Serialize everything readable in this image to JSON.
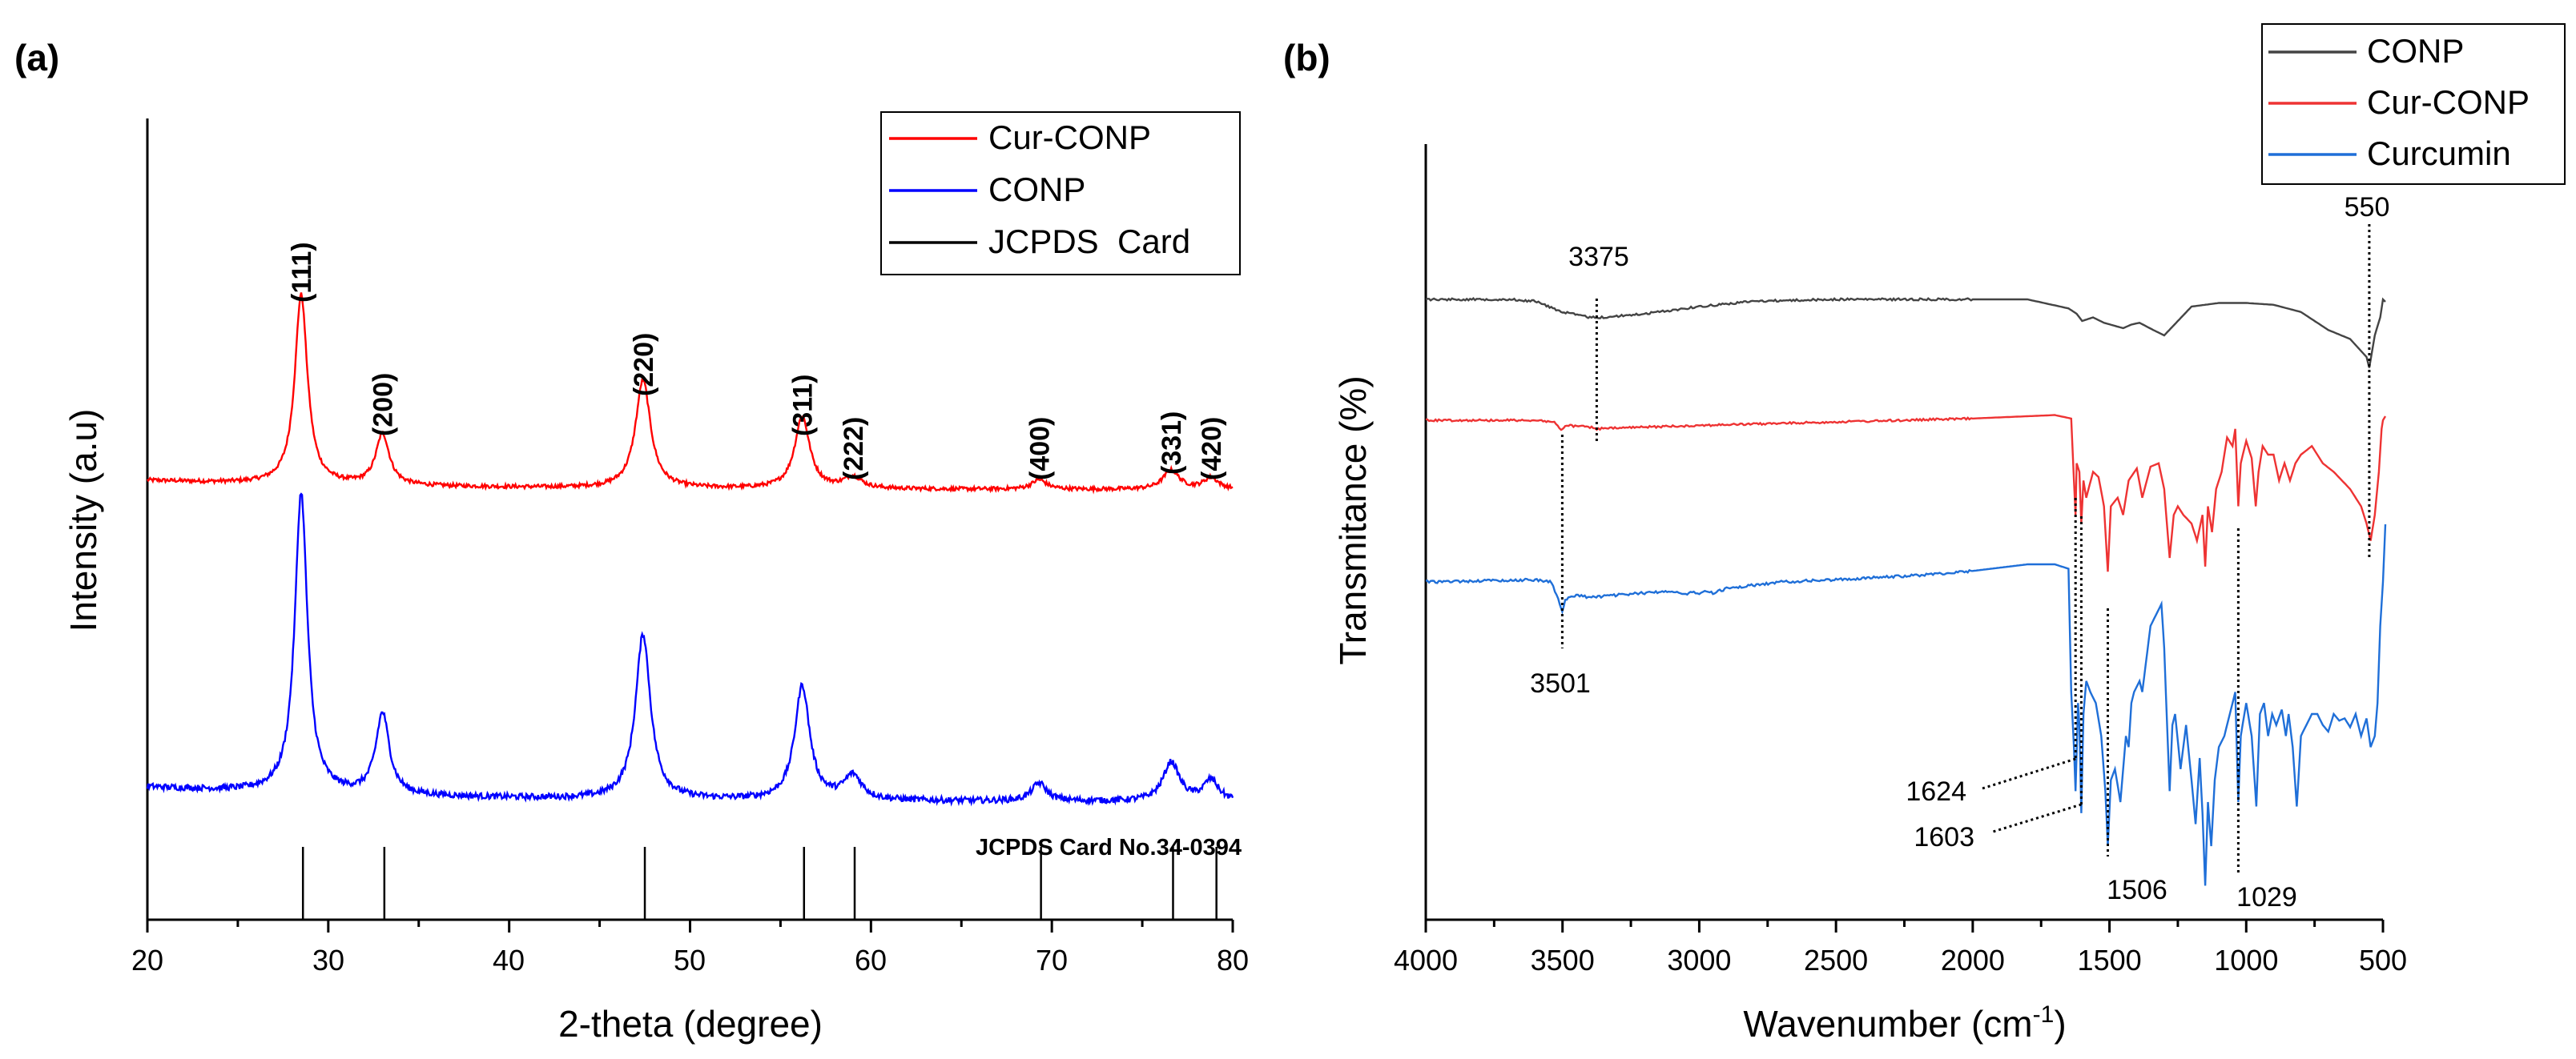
{
  "chart_data": [
    {
      "panel_label": "(a)",
      "type": "line",
      "xlabel": "2-theta (degree)",
      "ylabel": "Intensity (a.u)",
      "xlim": [
        20,
        80
      ],
      "xticks": [
        "20",
        "30",
        "40",
        "50",
        "60",
        "70",
        "80"
      ],
      "legend": [
        "Cur-CONP",
        "CONP",
        "JCPDS  Card"
      ],
      "legend_position": "top-right",
      "colors": {
        "cur": "#ff0000",
        "conp": "#0000ff",
        "card": "#000000"
      },
      "series": [
        {
          "name": "Cur-CONP",
          "color": "#ff0000",
          "baseline": 0.05,
          "peaks": [
            [
              28.5,
              1.0,
              0.42
            ],
            [
              33.0,
              0.27,
              0.45
            ],
            [
              47.4,
              0.57,
              0.5
            ],
            [
              56.2,
              0.38,
              0.5
            ],
            [
              59.0,
              0.06,
              0.6
            ],
            [
              69.3,
              0.05,
              0.5
            ],
            [
              76.6,
              0.1,
              0.55
            ],
            [
              78.8,
              0.06,
              0.5
            ]
          ]
        },
        {
          "name": "CONP",
          "color": "#0000ff",
          "baseline": 0.05,
          "peaks": [
            [
              28.5,
              1.0,
              0.42
            ],
            [
              33.0,
              0.27,
              0.45
            ],
            [
              47.4,
              0.55,
              0.5
            ],
            [
              56.2,
              0.38,
              0.5
            ],
            [
              59.0,
              0.08,
              0.6
            ],
            [
              69.3,
              0.06,
              0.5
            ],
            [
              76.6,
              0.13,
              0.55
            ],
            [
              78.8,
              0.07,
              0.5
            ]
          ]
        }
      ],
      "reference_card": {
        "label": "JCPDS Card No.34-0394",
        "positions": [
          28.6,
          33.1,
          47.5,
          56.3,
          59.1,
          69.4,
          76.7,
          79.1
        ]
      },
      "annotations": [
        {
          "text": "(111)",
          "x": 28.5
        },
        {
          "text": "(200)",
          "x": 33.0
        },
        {
          "text": "(220)",
          "x": 47.4
        },
        {
          "text": "(311)",
          "x": 56.2
        },
        {
          "text": "(222)",
          "x": 59.0
        },
        {
          "text": "(400)",
          "x": 69.3
        },
        {
          "text": "(331)",
          "x": 76.6
        },
        {
          "text": "(420)",
          "x": 78.8
        }
      ]
    },
    {
      "panel_label": "(b)",
      "type": "line",
      "xlabel": "Wavenumber (cm",
      "xlabel_sup": "-1",
      "xlabel_end": ")",
      "ylabel": "Transmitance (%)",
      "xlim": [
        4000,
        500
      ],
      "xticks": [
        "4000",
        "3500",
        "3000",
        "2500",
        "2000",
        "1500",
        "1000",
        "500"
      ],
      "legend": [
        "CONP",
        "Cur-CONP",
        "Curcumin"
      ],
      "legend_position": "top-right",
      "colors": {
        "conp": "#444444",
        "cur": "#ee3333",
        "curcumin": "#1f6fd8"
      },
      "series": [
        {
          "name": "CONP",
          "color": "#444444",
          "points": [
            [
              4000,
              0.0
            ],
            [
              3700,
              0.0
            ],
            [
              3600,
              0.01
            ],
            [
              3500,
              0.07
            ],
            [
              3400,
              0.1
            ],
            [
              3350,
              0.1
            ],
            [
              3200,
              0.08
            ],
            [
              3000,
              0.04
            ],
            [
              2800,
              0.01
            ],
            [
              2500,
              0.0
            ],
            [
              2000,
              0.0
            ],
            [
              1800,
              0.0
            ],
            [
              1650,
              0.05
            ],
            [
              1620,
              0.08
            ],
            [
              1600,
              0.12
            ],
            [
              1560,
              0.1
            ],
            [
              1520,
              0.13
            ],
            [
              1450,
              0.16
            ],
            [
              1420,
              0.14
            ],
            [
              1390,
              0.13
            ],
            [
              1340,
              0.17
            ],
            [
              1300,
              0.2
            ],
            [
              1250,
              0.12
            ],
            [
              1200,
              0.04
            ],
            [
              1100,
              0.02
            ],
            [
              1000,
              0.02
            ],
            [
              900,
              0.03
            ],
            [
              800,
              0.07
            ],
            [
              700,
              0.17
            ],
            [
              620,
              0.22
            ],
            [
              560,
              0.32
            ],
            [
              550,
              0.38
            ],
            [
              530,
              0.2
            ],
            [
              510,
              0.1
            ],
            [
              500,
              0.0
            ]
          ]
        },
        {
          "name": "Cur-CONP",
          "color": "#ee3333",
          "points": [
            [
              4000,
              0.0
            ],
            [
              3600,
              0.0
            ],
            [
              3530,
              0.01
            ],
            [
              3505,
              0.06
            ],
            [
              3490,
              0.03
            ],
            [
              3400,
              0.04
            ],
            [
              3375,
              0.05
            ],
            [
              3200,
              0.04
            ],
            [
              3000,
              0.03
            ],
            [
              2500,
              0.01
            ],
            [
              2000,
              -0.01
            ],
            [
              1700,
              -0.03
            ],
            [
              1640,
              -0.01
            ],
            [
              1630,
              0.35
            ],
            [
              1624,
              0.55
            ],
            [
              1620,
              0.25
            ],
            [
              1610,
              0.3
            ],
            [
              1603,
              0.6
            ],
            [
              1595,
              0.35
            ],
            [
              1585,
              0.45
            ],
            [
              1560,
              0.3
            ],
            [
              1540,
              0.33
            ],
            [
              1520,
              0.5
            ],
            [
              1506,
              0.88
            ],
            [
              1495,
              0.5
            ],
            [
              1470,
              0.45
            ],
            [
              1450,
              0.55
            ],
            [
              1430,
              0.35
            ],
            [
              1400,
              0.28
            ],
            [
              1380,
              0.45
            ],
            [
              1350,
              0.27
            ],
            [
              1320,
              0.25
            ],
            [
              1300,
              0.4
            ],
            [
              1280,
              0.8
            ],
            [
              1265,
              0.55
            ],
            [
              1250,
              0.5
            ],
            [
              1230,
              0.55
            ],
            [
              1200,
              0.6
            ],
            [
              1180,
              0.7
            ],
            [
              1160,
              0.55
            ],
            [
              1150,
              0.85
            ],
            [
              1140,
              0.5
            ],
            [
              1125,
              0.65
            ],
            [
              1110,
              0.4
            ],
            [
              1090,
              0.3
            ],
            [
              1070,
              0.1
            ],
            [
              1050,
              0.15
            ],
            [
              1040,
              0.05
            ],
            [
              1029,
              0.5
            ],
            [
              1020,
              0.25
            ],
            [
              1000,
              0.12
            ],
            [
              980,
              0.22
            ],
            [
              965,
              0.5
            ],
            [
              955,
              0.3
            ],
            [
              940,
              0.15
            ],
            [
              920,
              0.2
            ],
            [
              900,
              0.2
            ],
            [
              880,
              0.35
            ],
            [
              860,
              0.25
            ],
            [
              840,
              0.35
            ],
            [
              820,
              0.25
            ],
            [
              800,
              0.2
            ],
            [
              760,
              0.15
            ],
            [
              720,
              0.25
            ],
            [
              680,
              0.3
            ],
            [
              620,
              0.4
            ],
            [
              580,
              0.5
            ],
            [
              560,
              0.6
            ],
            [
              545,
              0.7
            ],
            [
              530,
              0.55
            ],
            [
              515,
              0.3
            ],
            [
              505,
              0.05
            ],
            [
              500,
              0.0
            ]
          ]
        },
        {
          "name": "Curcumin",
          "color": "#1f6fd8",
          "points": [
            [
              4000,
              0.0
            ],
            [
              3600,
              -0.01
            ],
            [
              3540,
              0.0
            ],
            [
              3510,
              0.1
            ],
            [
              3501,
              0.14
            ],
            [
              3490,
              0.08
            ],
            [
              3450,
              0.06
            ],
            [
              3400,
              0.07
            ],
            [
              3300,
              0.06
            ],
            [
              3200,
              0.05
            ],
            [
              3100,
              0.04
            ],
            [
              3050,
              0.06
            ],
            [
              3020,
              0.04
            ],
            [
              3000,
              0.06
            ],
            [
              2980,
              0.04
            ],
            [
              2950,
              0.05
            ],
            [
              2900,
              0.03
            ],
            [
              2700,
              0.0
            ],
            [
              2500,
              -0.01
            ],
            [
              2200,
              -0.03
            ],
            [
              2000,
              -0.05
            ],
            [
              1800,
              -0.08
            ],
            [
              1700,
              -0.08
            ],
            [
              1650,
              -0.06
            ],
            [
              1640,
              0.5
            ],
            [
              1630,
              0.75
            ],
            [
              1624,
              0.95
            ],
            [
              1615,
              0.55
            ],
            [
              1610,
              0.65
            ],
            [
              1603,
              1.05
            ],
            [
              1595,
              0.6
            ],
            [
              1585,
              0.45
            ],
            [
              1570,
              0.5
            ],
            [
              1550,
              0.55
            ],
            [
              1530,
              0.7
            ],
            [
              1515,
              0.95
            ],
            [
              1506,
              1.2
            ],
            [
              1495,
              0.9
            ],
            [
              1480,
              0.85
            ],
            [
              1460,
              1.0
            ],
            [
              1440,
              0.7
            ],
            [
              1430,
              0.75
            ],
            [
              1420,
              0.55
            ],
            [
              1410,
              0.5
            ],
            [
              1390,
              0.45
            ],
            [
              1380,
              0.5
            ],
            [
              1350,
              0.2
            ],
            [
              1330,
              0.15
            ],
            [
              1310,
              0.1
            ],
            [
              1300,
              0.3
            ],
            [
              1280,
              0.95
            ],
            [
              1270,
              0.65
            ],
            [
              1260,
              0.6
            ],
            [
              1240,
              0.85
            ],
            [
              1220,
              0.65
            ],
            [
              1200,
              0.9
            ],
            [
              1185,
              1.1
            ],
            [
              1170,
              0.8
            ],
            [
              1160,
              1.05
            ],
            [
              1150,
              1.38
            ],
            [
              1140,
              1.0
            ],
            [
              1128,
              1.2
            ],
            [
              1115,
              0.9
            ],
            [
              1100,
              0.75
            ],
            [
              1080,
              0.7
            ],
            [
              1060,
              0.6
            ],
            [
              1040,
              0.5
            ],
            [
              1029,
              1.0
            ],
            [
              1020,
              0.7
            ],
            [
              1000,
              0.55
            ],
            [
              980,
              0.7
            ],
            [
              963,
              1.02
            ],
            [
              950,
              0.6
            ],
            [
              935,
              0.55
            ],
            [
              920,
              0.7
            ],
            [
              905,
              0.6
            ],
            [
              890,
              0.65
            ],
            [
              870,
              0.58
            ],
            [
              855,
              0.7
            ],
            [
              845,
              0.6
            ],
            [
              830,
              0.75
            ],
            [
              815,
              1.02
            ],
            [
              800,
              0.7
            ],
            [
              780,
              0.65
            ],
            [
              760,
              0.6
            ],
            [
              740,
              0.6
            ],
            [
              720,
              0.65
            ],
            [
              700,
              0.68
            ],
            [
              680,
              0.6
            ],
            [
              660,
              0.63
            ],
            [
              640,
              0.62
            ],
            [
              620,
              0.66
            ],
            [
              600,
              0.6
            ],
            [
              580,
              0.7
            ],
            [
              560,
              0.62
            ],
            [
              545,
              0.75
            ],
            [
              530,
              0.7
            ],
            [
              520,
              0.55
            ],
            [
              510,
              0.2
            ],
            [
              500,
              0.0
            ]
          ]
        }
      ],
      "annotations": [
        {
          "text": "3375",
          "x": 3375
        },
        {
          "text": "3501",
          "x": 3501
        },
        {
          "text": "550",
          "x": 550
        },
        {
          "text": "1624",
          "x": 1624
        },
        {
          "text": "1603",
          "x": 1603
        },
        {
          "text": "1506",
          "x": 1506
        },
        {
          "text": "1029",
          "x": 1029
        }
      ]
    }
  ]
}
